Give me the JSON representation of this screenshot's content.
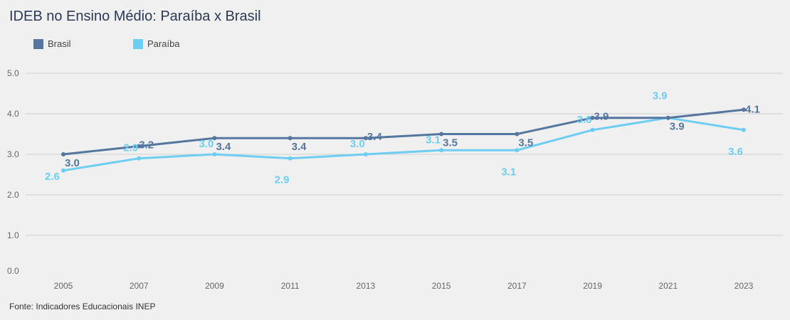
{
  "title": "IDEB no Ensino Médio: Paraíba x Brasil",
  "source": "Fonte: Indicadores Educacionais INEP",
  "colors": {
    "brasil": "#55779f",
    "paraiba": "#6dcdf2",
    "grid": "#d0d0d0",
    "background": "#f0f0f0"
  },
  "chart_data": {
    "type": "line",
    "title": "IDEB no Ensino Médio: Paraíba x Brasil",
    "x": [
      "2005",
      "2007",
      "2009",
      "2011",
      "2013",
      "2015",
      "2017",
      "2019",
      "2021",
      "2023"
    ],
    "xlabel": "",
    "ylabel": "",
    "ylim": [
      0,
      5
    ],
    "yticks": [
      "0.0",
      "1.0",
      "2.0",
      "3.0",
      "4.0",
      "5.0"
    ],
    "grid": true,
    "legend_position": "top-left",
    "series": [
      {
        "name": "Brasil",
        "color": "#55779f",
        "values": [
          3.0,
          3.2,
          3.4,
          3.4,
          3.4,
          3.5,
          3.5,
          3.9,
          3.9,
          4.1
        ],
        "labels": [
          "3.0",
          "3.2",
          "3.4",
          "3.4",
          "3.4",
          "3.5",
          "3.5",
          "3.9",
          "3.9",
          "4.1"
        ]
      },
      {
        "name": "Paraíba",
        "color": "#6dcdf2",
        "values": [
          2.6,
          2.9,
          3.0,
          2.9,
          3.0,
          3.1,
          3.1,
          3.6,
          3.9,
          3.6
        ],
        "labels": [
          "2.6",
          "2.9",
          "3.0",
          "2.9",
          "3.0",
          "3.1",
          "3.1",
          "3.6",
          "3.9",
          "3.6"
        ]
      }
    ]
  }
}
